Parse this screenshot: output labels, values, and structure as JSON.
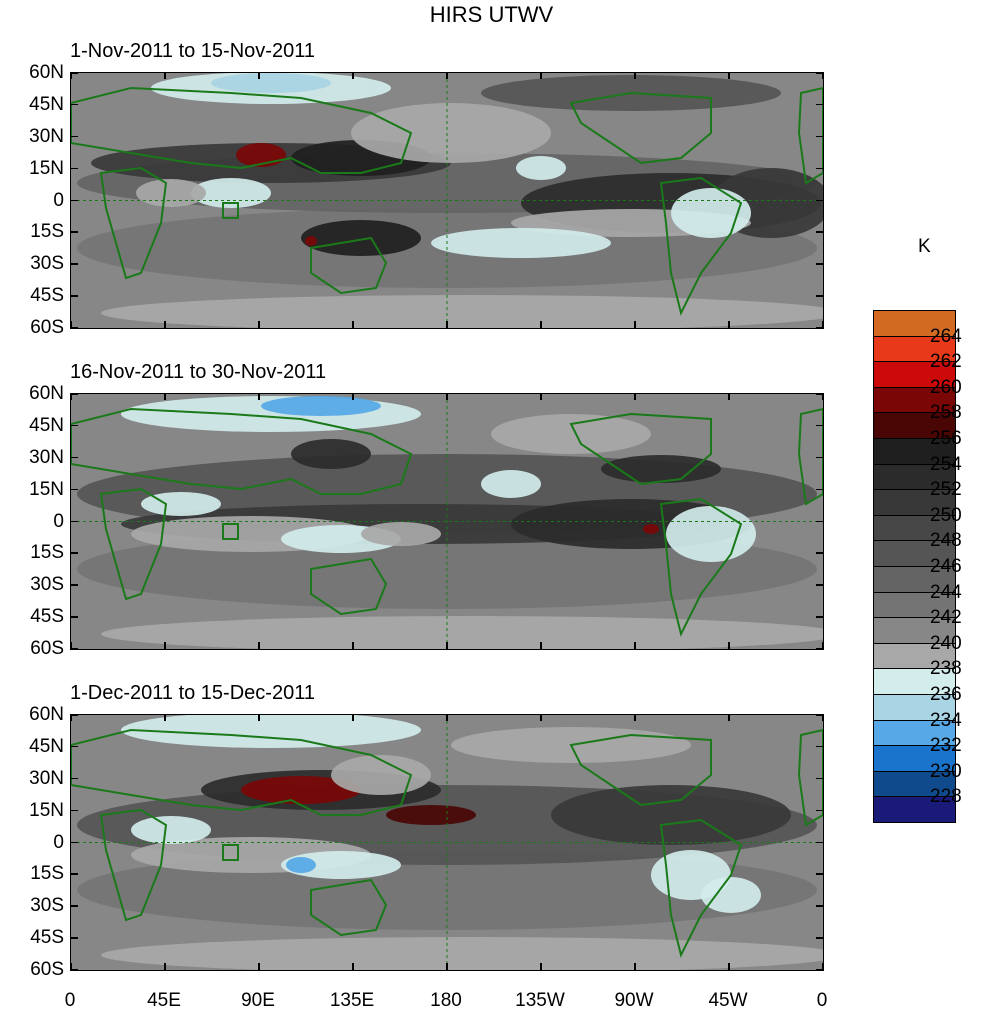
{
  "title": "HIRS UTWV",
  "panels": [
    {
      "label": "1-Nov-2011 to 15-Nov-2011"
    },
    {
      "label": "16-Nov-2011 to 30-Nov-2011"
    },
    {
      "label": "1-Dec-2011 to 15-Dec-2011"
    }
  ],
  "y_axis": {
    "labels": [
      "60N",
      "45N",
      "30N",
      "15N",
      "0",
      "15S",
      "30S",
      "45S",
      "60S"
    ]
  },
  "x_axis": {
    "labels": [
      "0",
      "45E",
      "90E",
      "135E",
      "180",
      "135W",
      "90W",
      "45W",
      "0"
    ]
  },
  "colorbar": {
    "unit": "K",
    "labels": [
      "264",
      "262",
      "260",
      "258",
      "256",
      "254",
      "252",
      "250",
      "248",
      "246",
      "244",
      "242",
      "240",
      "238",
      "236",
      "234",
      "232",
      "230",
      "228"
    ],
    "colors": [
      "#d36a22",
      "#e83a1a",
      "#cc0a0a",
      "#7a0606",
      "#4a0505",
      "#1f1f1f",
      "#2b2b2b",
      "#383838",
      "#474747",
      "#555555",
      "#646464",
      "#747474",
      "#878787",
      "#a8a8a8",
      "#d3ecec",
      "#a9d4e4",
      "#56a8e6",
      "#1b74cc",
      "#0f4a8c",
      "#1a1a78"
    ]
  },
  "map_colors": {
    "land_outline": "#1a7a1a",
    "panel_background": "#9a9a9a"
  }
}
